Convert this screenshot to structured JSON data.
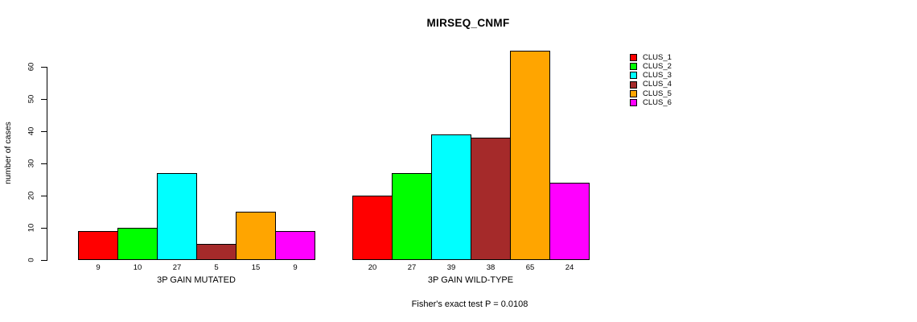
{
  "chart_data": {
    "type": "bar",
    "title": "MIRSEQ_CNMF",
    "ylabel": "number of cases",
    "xlabel": "",
    "ylim": [
      0,
      65
    ],
    "yticks": [
      0,
      10,
      20,
      30,
      40,
      50,
      60
    ],
    "grid": false,
    "legend_position": "right",
    "categories": [
      "3P GAIN MUTATED",
      "3P GAIN WILD-TYPE"
    ],
    "series": [
      {
        "name": "CLUS_1",
        "color": "#FF0000",
        "values": [
          9,
          20
        ]
      },
      {
        "name": "CLUS_2",
        "color": "#00FF00",
        "values": [
          10,
          27
        ]
      },
      {
        "name": "CLUS_3",
        "color": "#00FFFF",
        "values": [
          27,
          39
        ]
      },
      {
        "name": "CLUS_4",
        "color": "#A52A2A",
        "values": [
          5,
          38
        ]
      },
      {
        "name": "CLUS_5",
        "color": "#FFA500",
        "values": [
          15,
          65
        ]
      },
      {
        "name": "CLUS_6",
        "color": "#FF00FF",
        "values": [
          9,
          24
        ]
      }
    ],
    "bar_value_labels_shown": true,
    "annotation": "Fisher's exact test P = 0.0108"
  }
}
